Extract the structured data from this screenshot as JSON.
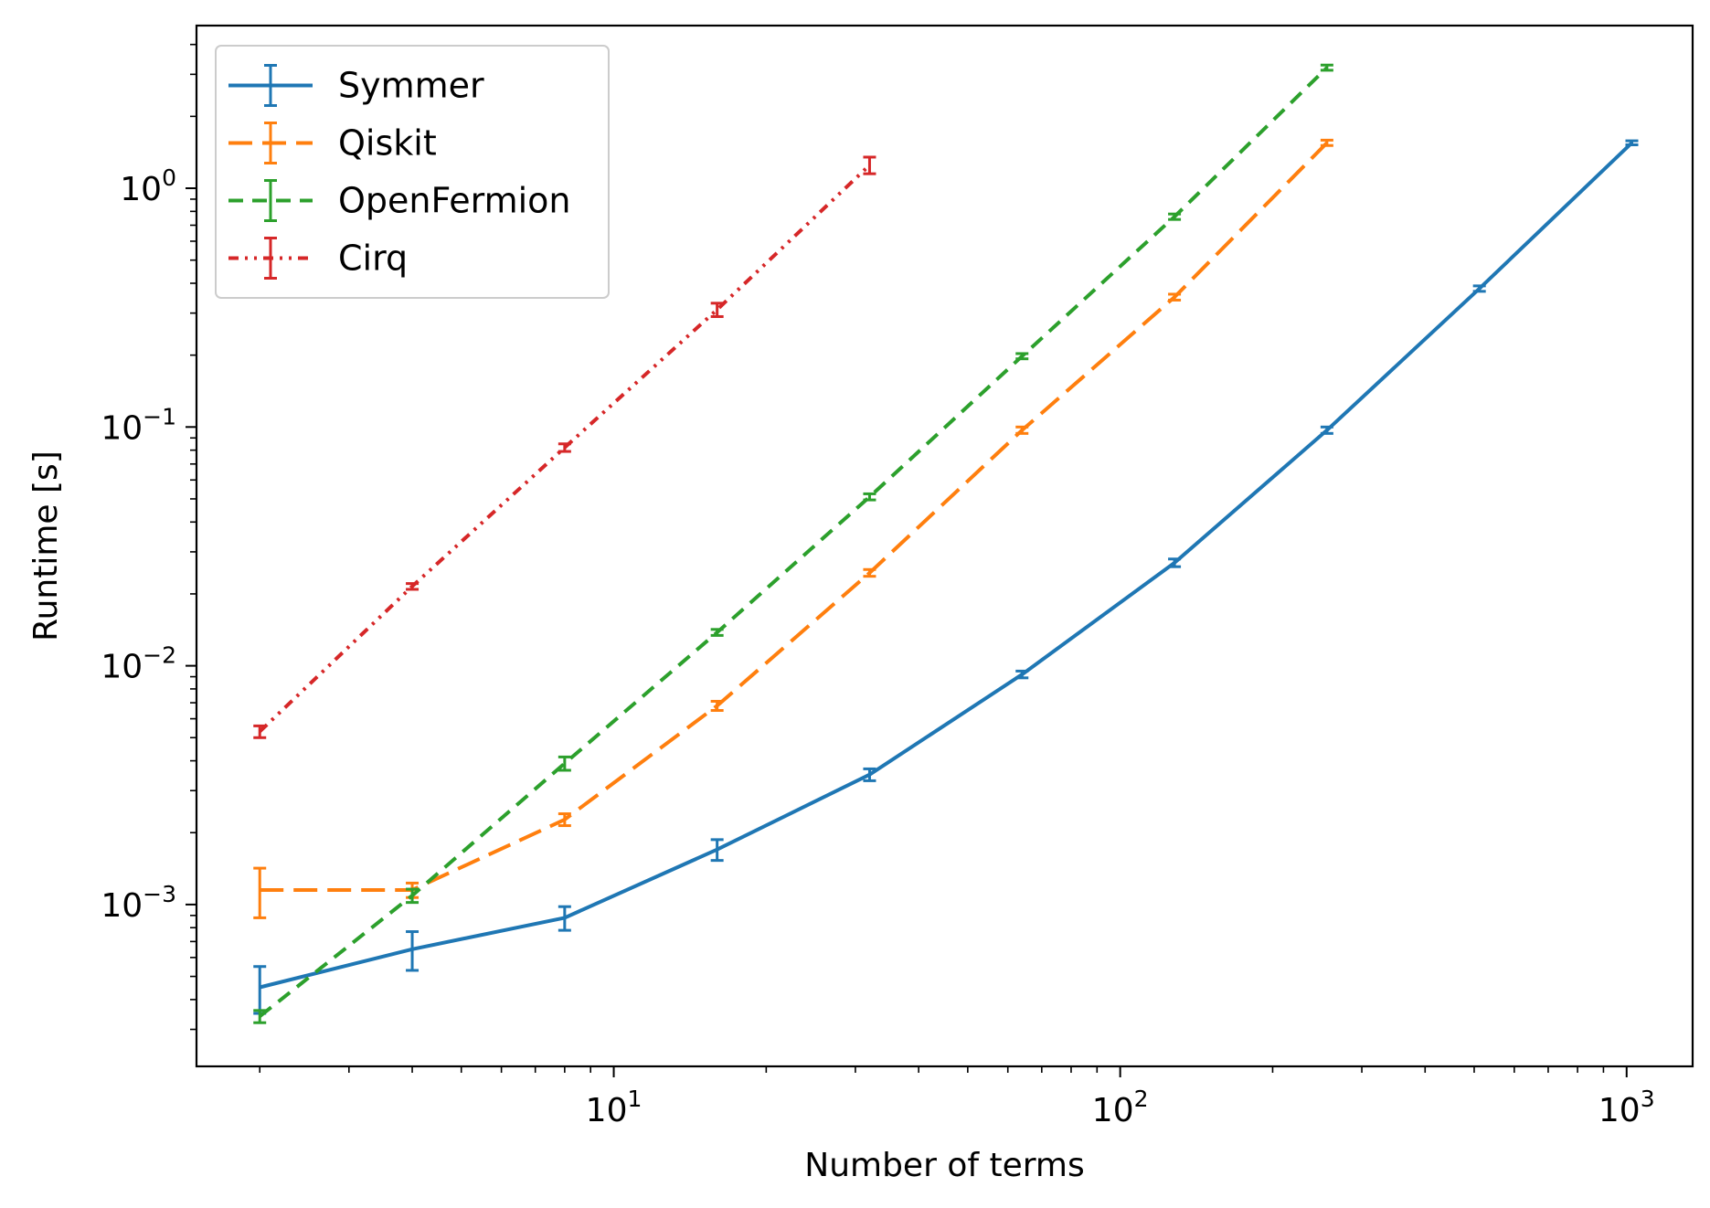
{
  "chart_data": {
    "type": "line",
    "xlabel": "Number of terms",
    "ylabel": "Runtime [s]",
    "xscale": "log",
    "yscale": "log",
    "xlim": [
      1.5,
      1350
    ],
    "ylim": [
      0.00021,
      4.8
    ],
    "grid": false,
    "legend_position": "top-left",
    "x_ticks": [
      {
        "base": "10",
        "exp": "1",
        "value": 10
      },
      {
        "base": "10",
        "exp": "2",
        "value": 100
      },
      {
        "base": "10",
        "exp": "3",
        "value": 1000
      }
    ],
    "y_ticks": [
      {
        "base": "10",
        "exp": "−3",
        "value": 0.001
      },
      {
        "base": "10",
        "exp": "−2",
        "value": 0.01
      },
      {
        "base": "10",
        "exp": "−1",
        "value": 0.1
      },
      {
        "base": "10",
        "exp": "0",
        "value": 1
      }
    ],
    "series": [
      {
        "name": "Symmer",
        "color": "#1f77b4",
        "dash": "solid",
        "x": [
          2,
          4,
          8,
          16,
          32,
          64,
          128,
          256,
          512,
          1024
        ],
        "y": [
          0.00045,
          0.00065,
          0.00088,
          0.0017,
          0.0035,
          0.0092,
          0.027,
          0.097,
          0.38,
          1.55
        ],
        "yerr": [
          0.0001,
          0.00012,
          0.0001,
          0.00017,
          0.0002,
          0.0003,
          0.001,
          0.003,
          0.01,
          0.03
        ]
      },
      {
        "name": "Qiskit",
        "color": "#ff7f0e",
        "dash": "dashed",
        "x": [
          2,
          4,
          8,
          16,
          32,
          64,
          128,
          256
        ],
        "y": [
          0.00115,
          0.00115,
          0.00227,
          0.0068,
          0.0245,
          0.097,
          0.35,
          1.55
        ],
        "yerr": [
          0.00027,
          8e-05,
          0.00013,
          0.0003,
          0.0008,
          0.003,
          0.01,
          0.04
        ]
      },
      {
        "name": "OpenFermion",
        "color": "#2ca02c",
        "dash": "dashdash",
        "x": [
          2,
          4,
          8,
          16,
          32,
          64,
          128,
          256
        ],
        "y": [
          0.00034,
          0.00109,
          0.0039,
          0.0138,
          0.051,
          0.198,
          0.76,
          3.2
        ],
        "yerr": [
          2e-05,
          7e-05,
          0.00025,
          0.0004,
          0.0015,
          0.005,
          0.02,
          0.08
        ]
      },
      {
        "name": "Cirq",
        "color": "#d62728",
        "dash": "dashdotdot",
        "x": [
          2,
          4,
          8,
          16,
          32
        ],
        "y": [
          0.0053,
          0.0215,
          0.082,
          0.31,
          1.25
        ],
        "yerr": [
          0.0003,
          0.0006,
          0.003,
          0.02,
          0.1
        ]
      }
    ]
  }
}
